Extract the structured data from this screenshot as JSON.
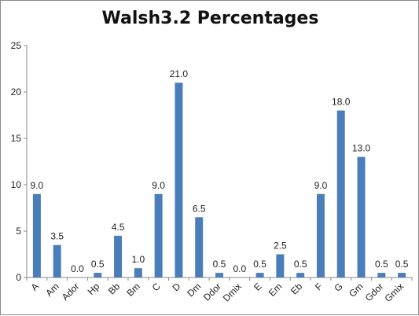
{
  "chart_data": {
    "type": "bar",
    "title": "Walsh3.2 Percentages",
    "xlabel": "",
    "ylabel": "",
    "categories": [
      "A",
      "Am",
      "Ador",
      "Hp",
      "Bb",
      "Bm",
      "C",
      "D",
      "Dm",
      "Ddor",
      "Dmix",
      "E",
      "Em",
      "Eb",
      "F",
      "G",
      "Gm",
      "Gdor",
      "Gmix"
    ],
    "values": [
      9.0,
      3.5,
      0.0,
      0.5,
      4.5,
      1.0,
      9.0,
      21.0,
      6.5,
      0.5,
      0.0,
      0.5,
      2.5,
      0.5,
      9.0,
      18.0,
      13.0,
      0.5,
      0.5
    ],
    "data_labels": [
      "9.0",
      "3.5",
      "0.0",
      "0.5",
      "4.5",
      "1.0",
      "9.0",
      "21.0",
      "6.5",
      "0.5",
      "0.0",
      "0.5",
      "2.5",
      "0.5",
      "9.0",
      "18.0",
      "13.0",
      "0.5",
      "0.5"
    ],
    "ylim": [
      0,
      25
    ],
    "yticks": [
      0,
      5,
      10,
      15,
      20,
      25
    ],
    "grid": false,
    "legend": "none",
    "bar_color": "#4a7ebb",
    "axis_color": "#888888"
  }
}
